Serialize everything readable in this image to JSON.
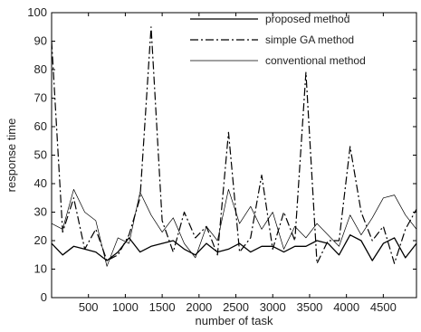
{
  "chart_data": {
    "type": "line",
    "xlabel": "number of task",
    "ylabel": "response time",
    "xlim": [
      0,
      4950
    ],
    "ylim": [
      0,
      100
    ],
    "xticks": [
      500,
      1000,
      1500,
      2000,
      2500,
      3000,
      3500,
      4000,
      4500
    ],
    "yticks": [
      0,
      10,
      20,
      30,
      40,
      50,
      60,
      70,
      80,
      90,
      100
    ],
    "grid": false,
    "legend_position": "top-right",
    "series": [
      {
        "name": "proposed method",
        "style": "solid",
        "x": [
          0,
          150,
          300,
          450,
          600,
          750,
          900,
          1050,
          1200,
          1350,
          1500,
          1650,
          1800,
          1950,
          2100,
          2250,
          2400,
          2550,
          2700,
          2850,
          3000,
          3150,
          3300,
          3450,
          3600,
          3750,
          3900,
          4050,
          4200,
          4350,
          4500,
          4650,
          4800,
          4950
        ],
        "y": [
          19,
          15,
          18,
          17,
          16,
          13,
          16,
          21,
          16,
          18,
          19,
          20,
          17,
          15,
          19,
          16,
          17,
          19,
          16,
          18,
          18,
          16,
          18,
          18,
          20,
          19,
          15,
          22,
          20,
          13,
          19,
          21,
          14,
          19
        ]
      },
      {
        "name": "simple GA method",
        "style": "dash-dot",
        "x": [
          0,
          150,
          300,
          450,
          600,
          750,
          900,
          1050,
          1200,
          1350,
          1500,
          1650,
          1800,
          1950,
          2100,
          2250,
          2400,
          2550,
          2700,
          2850,
          3000,
          3150,
          3300,
          3450,
          3600,
          3750,
          3900,
          4050,
          4200,
          4350,
          4500,
          4650,
          4800,
          4950
        ],
        "y": [
          90,
          23,
          35,
          17,
          24,
          13,
          15,
          22,
          35,
          95,
          27,
          16,
          30,
          21,
          25,
          15,
          58,
          16,
          21,
          43,
          17,
          30,
          20,
          79,
          12,
          20,
          20,
          53,
          30,
          20,
          25,
          12,
          24,
          31
        ]
      },
      {
        "name": "conventional method",
        "style": "thin-solid",
        "x": [
          0,
          150,
          300,
          450,
          600,
          750,
          900,
          1050,
          1200,
          1350,
          1500,
          1650,
          1800,
          1950,
          2100,
          2250,
          2400,
          2550,
          2700,
          2850,
          3000,
          3150,
          3300,
          3450,
          3600,
          3750,
          3900,
          4050,
          4200,
          4350,
          4500,
          4650,
          4800,
          4950
        ],
        "y": [
          26,
          24,
          38,
          30,
          27,
          11,
          21,
          19,
          37,
          29,
          23,
          28,
          19,
          14,
          25,
          20,
          38,
          26,
          32,
          24,
          30,
          17,
          25,
          21,
          26,
          22,
          18,
          29,
          22,
          28,
          35,
          36,
          29,
          24
        ]
      }
    ]
  }
}
